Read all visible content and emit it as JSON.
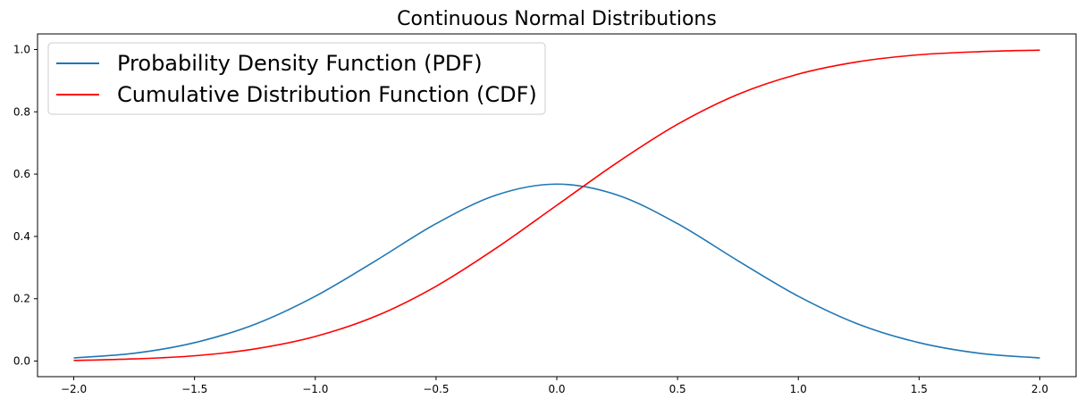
{
  "chart_data": {
    "type": "line",
    "title": "Continuous Normal Distributions",
    "xlabel": "",
    "ylabel": "",
    "xlim": [
      -2.15,
      2.15
    ],
    "ylim": [
      -0.05,
      1.05
    ],
    "x_ticks": [
      -2.0,
      -1.5,
      -1.0,
      -0.5,
      0.0,
      0.5,
      1.0,
      1.5,
      2.0
    ],
    "x_tick_labels": [
      "−2.0",
      "−1.5",
      "−1.0",
      "−0.5",
      "0.0",
      "0.5",
      "1.0",
      "1.5",
      "2.0"
    ],
    "y_ticks": [
      0.0,
      0.2,
      0.4,
      0.6,
      0.8,
      1.0
    ],
    "y_tick_labels": [
      "0.0",
      "0.2",
      "0.4",
      "0.6",
      "0.8",
      "1.0"
    ],
    "grid": false,
    "legend_position": "top-left",
    "series": [
      {
        "name": "Probability Density Function (PDF)",
        "color": "#1f77b4",
        "x": [
          -2.0,
          -1.75,
          -1.5,
          -1.25,
          -1.0,
          -0.75,
          -0.5,
          -0.25,
          0.0,
          0.25,
          0.5,
          0.75,
          1.0,
          1.25,
          1.5,
          1.75,
          2.0
        ],
        "y": [
          0.01,
          0.025,
          0.059,
          0.118,
          0.208,
          0.322,
          0.441,
          0.533,
          0.568,
          0.533,
          0.441,
          0.322,
          0.208,
          0.118,
          0.059,
          0.025,
          0.01
        ]
      },
      {
        "name": "Cumulative Distribution Function (CDF)",
        "color": "#ff0000",
        "x": [
          -2.0,
          -1.75,
          -1.5,
          -1.25,
          -1.0,
          -0.75,
          -0.5,
          -0.25,
          0.0,
          0.25,
          0.5,
          0.75,
          1.0,
          1.25,
          1.5,
          1.75,
          2.0
        ],
        "y": [
          0.002,
          0.007,
          0.017,
          0.039,
          0.079,
          0.144,
          0.24,
          0.363,
          0.5,
          0.637,
          0.76,
          0.856,
          0.921,
          0.961,
          0.983,
          0.993,
          0.998
        ]
      }
    ]
  }
}
